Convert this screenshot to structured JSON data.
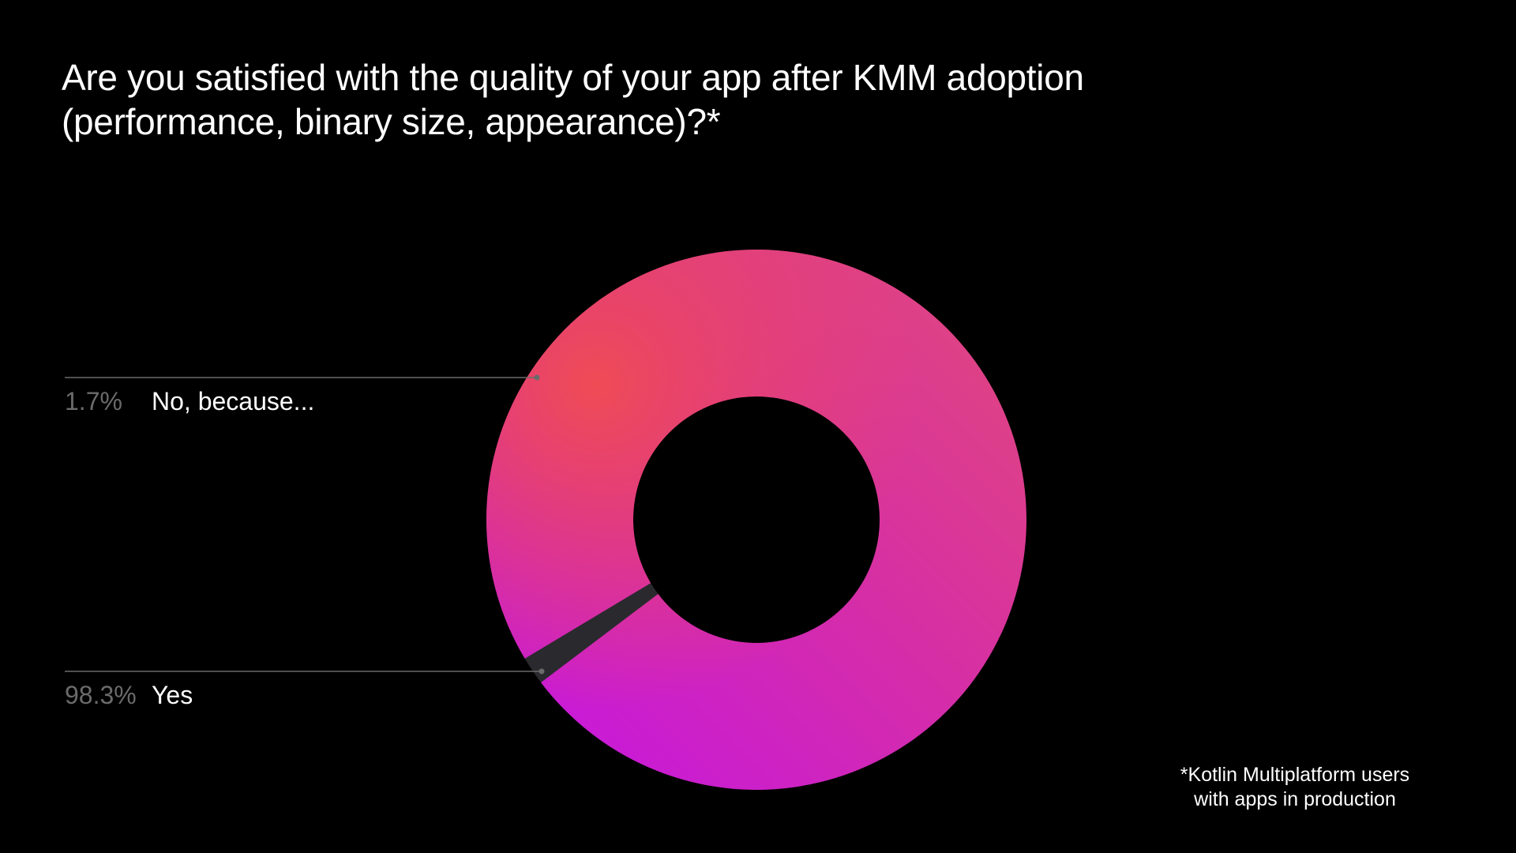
{
  "title": {
    "line1": "Are you satisfied with the quality of your app after KMM adoption",
    "line2": "(performance, binary size, appearance)?*"
  },
  "footnote": {
    "line1": "*Kotlin Multiplatform users",
    "line2": "with apps in production"
  },
  "chart_data": {
    "type": "pie",
    "variant": "donut",
    "title": "Are you satisfied with the quality of your app after KMM adoption (performance, binary size, appearance)?*",
    "slices": [
      {
        "label": "No, because...",
        "value": 1.7,
        "display": "1.7%",
        "color": "#2a2a2e"
      },
      {
        "label": "Yes",
        "value": 98.3,
        "display": "98.3%",
        "color_start": "#c414e6",
        "color_mid": "#d62fa4",
        "color_end": "#ee4a58"
      }
    ]
  },
  "colors": {
    "background": "#000000",
    "leader_line": "#6b6b6b",
    "percent_text": "#6b6b6b",
    "label_text": "#ffffff"
  }
}
